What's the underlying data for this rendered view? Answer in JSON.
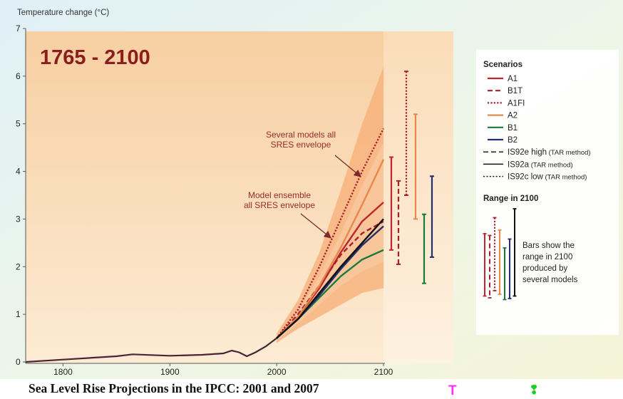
{
  "chart_data": {
    "type": "line",
    "title": "1765 - 2100",
    "ylabel": "Temperature change (°C)",
    "xlabel": "",
    "xlim": [
      1765,
      2100
    ],
    "ylim": [
      0,
      7
    ],
    "x_ticks": [
      1800,
      1900,
      2000,
      2100
    ],
    "y_ticks": [
      0,
      1,
      2,
      3,
      4,
      5,
      6,
      7
    ],
    "grid": false,
    "legend_position": "right",
    "history": {
      "x": [
        1765,
        1800,
        1850,
        1865,
        1900,
        1930,
        1950,
        1958,
        1965,
        1972,
        1980,
        1990,
        2000
      ],
      "y": [
        0.0,
        0.05,
        0.12,
        0.16,
        0.13,
        0.15,
        0.18,
        0.24,
        0.2,
        0.12,
        0.2,
        0.33,
        0.5
      ]
    },
    "envelopes": [
      {
        "label": "Several models all SRES envelope",
        "x": [
          2000,
          2020,
          2040,
          2060,
          2080,
          2100
        ],
        "upper": [
          0.6,
          1.3,
          2.3,
          3.6,
          5.0,
          6.2
        ],
        "lower": [
          0.4,
          0.7,
          0.95,
          1.2,
          1.45,
          1.55
        ]
      },
      {
        "label": "Model ensemble all SRES envelope",
        "x": [
          2000,
          2020,
          2040,
          2060,
          2080,
          2100
        ],
        "upper": [
          0.55,
          1.05,
          1.8,
          2.7,
          3.7,
          4.6
        ],
        "lower": [
          0.45,
          0.8,
          1.2,
          1.6,
          1.9,
          2.1
        ]
      }
    ],
    "series": [
      {
        "name": "A1",
        "style": "solid",
        "color": "#c0262e",
        "x": [
          2000,
          2020,
          2040,
          2060,
          2080,
          2100
        ],
        "y": [
          0.5,
          0.95,
          1.55,
          2.3,
          2.95,
          3.35
        ]
      },
      {
        "name": "B1T",
        "style": "dashed",
        "color": "#a8202a",
        "x": [
          2000,
          2020,
          2040,
          2060,
          2080,
          2100
        ],
        "y": [
          0.5,
          1.0,
          1.6,
          2.25,
          2.7,
          2.95
        ]
      },
      {
        "name": "A1FI",
        "style": "dotted",
        "color": "#a8202a",
        "x": [
          2000,
          2020,
          2040,
          2060,
          2080,
          2100
        ],
        "y": [
          0.5,
          1.1,
          2.0,
          3.0,
          4.0,
          4.9
        ]
      },
      {
        "name": "A2",
        "style": "solid",
        "color": "#e8884a",
        "x": [
          2000,
          2020,
          2040,
          2060,
          2080,
          2100
        ],
        "y": [
          0.5,
          0.95,
          1.6,
          2.4,
          3.3,
          4.25
        ]
      },
      {
        "name": "B1",
        "style": "solid",
        "color": "#1a7a3c",
        "x": [
          2000,
          2020,
          2040,
          2060,
          2080,
          2100
        ],
        "y": [
          0.5,
          0.9,
          1.35,
          1.8,
          2.15,
          2.35
        ]
      },
      {
        "name": "B2",
        "style": "solid",
        "color": "#24306e",
        "x": [
          2000,
          2020,
          2040,
          2060,
          2080,
          2100
        ],
        "y": [
          0.5,
          0.9,
          1.4,
          1.95,
          2.45,
          2.85
        ]
      },
      {
        "name": "IS92a",
        "style": "solid",
        "color": "#111111",
        "x": [
          2000,
          2020,
          2040,
          2060,
          2080,
          2100
        ],
        "y": [
          0.5,
          0.9,
          1.45,
          2.0,
          2.5,
          3.0
        ]
      }
    ],
    "ranges_2100": [
      {
        "name": "A1",
        "color": "#c0262e",
        "style": "solid",
        "min": 2.35,
        "max": 4.3
      },
      {
        "name": "B1T",
        "color": "#a8202a",
        "style": "dashed",
        "min": 2.05,
        "max": 3.8
      },
      {
        "name": "A1FI",
        "color": "#a8202a",
        "style": "dotted",
        "min": 3.5,
        "max": 6.1
      },
      {
        "name": "A2",
        "color": "#e8884a",
        "style": "solid",
        "min": 3.0,
        "max": 5.2
      },
      {
        "name": "B1",
        "color": "#1a7a3c",
        "style": "solid",
        "min": 1.65,
        "max": 3.1
      },
      {
        "name": "B2",
        "color": "#24306e",
        "style": "solid",
        "min": 2.2,
        "max": 3.9
      }
    ],
    "annotations": [
      {
        "text": [
          "Several models all",
          "SRES envelope"
        ]
      },
      {
        "text": [
          "Model ensemble",
          "all SRES envelope"
        ]
      }
    ],
    "legend": {
      "title": "Scenarios",
      "entries": [
        {
          "name": "A1",
          "suffix": "",
          "color": "#c0262e",
          "style": "solid"
        },
        {
          "name": "B1T",
          "suffix": "",
          "color": "#a8202a",
          "style": "dashed"
        },
        {
          "name": "A1FI",
          "suffix": "",
          "color": "#a8202a",
          "style": "dotted"
        },
        {
          "name": "A2",
          "suffix": "",
          "color": "#e8884a",
          "style": "solid"
        },
        {
          "name": "B1",
          "suffix": "",
          "color": "#1a7a3c",
          "style": "solid"
        },
        {
          "name": "B2",
          "suffix": "",
          "color": "#24306e",
          "style": "solid"
        },
        {
          "name": "IS92e high",
          "suffix": "(TAR method)",
          "color": "#222222",
          "style": "dashed"
        },
        {
          "name": "IS92a",
          "suffix": "(TAR method)",
          "color": "#111111",
          "style": "solid"
        },
        {
          "name": "IS92c low",
          "suffix": "(TAR method)",
          "color": "#222222",
          "style": "dotted"
        }
      ],
      "range_title": "Range in 2100",
      "range_note": [
        "Bars show the",
        "range in 2100",
        "produced by",
        "several models"
      ],
      "range_bars": [
        {
          "color": "#c0262e",
          "style": "solid",
          "min": 0.85,
          "max": 2.6
        },
        {
          "color": "#a8202a",
          "style": "dashed",
          "min": 0.8,
          "max": 2.55
        },
        {
          "color": "#a8202a",
          "style": "dotted",
          "min": 1.0,
          "max": 3.05
        },
        {
          "color": "#e8884a",
          "style": "solid",
          "min": 0.9,
          "max": 2.7
        },
        {
          "color": "#1a7a3c",
          "style": "solid",
          "min": 0.75,
          "max": 2.2
        },
        {
          "color": "#24306e",
          "style": "solid",
          "min": 0.78,
          "max": 2.45
        },
        {
          "color": "#111111",
          "style": "solid",
          "min": 0.85,
          "max": 3.3
        }
      ]
    }
  },
  "caption": "Sea Level Rise Projections in the IPCC: 2001 and 2007",
  "markers": [
    {
      "glyph": "T",
      "color": "#ff30ff"
    },
    {
      "glyph": "❢",
      "color": "#20d020"
    }
  ],
  "colors": {
    "panel_bg_from": "#f6c79a",
    "panel_bg_to": "#fbe3c2",
    "envelope_outer": "#f7b07a",
    "envelope_inner": "#f8c69c",
    "title": "#8c1d1d",
    "annotation": "#9b2a2a"
  }
}
